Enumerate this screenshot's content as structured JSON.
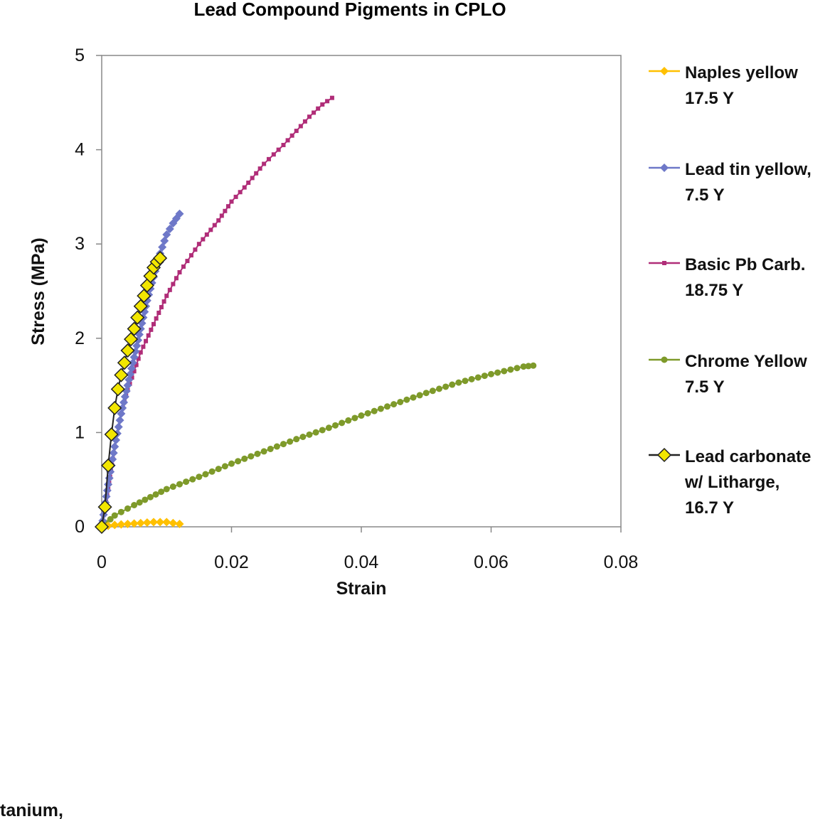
{
  "chart_data": {
    "type": "scatter",
    "title": "Lead Compound Pigments in CPLO",
    "xlabel": "Strain",
    "ylabel": "Stress (MPa)",
    "xlim": [
      0,
      0.08
    ],
    "ylim": [
      0,
      5
    ],
    "x_ticks": [
      "0",
      "0.02",
      "0.04",
      "0.06",
      "0.08"
    ],
    "y_ticks": [
      "0",
      "1",
      "2",
      "3",
      "4",
      "5"
    ],
    "grid": false,
    "legend_position": "right",
    "series": [
      {
        "name": "Naples yellow 17.5 Y",
        "legend_lines": [
          "Naples yellow",
          "17.5 Y"
        ],
        "color": "#FFC000",
        "marker": "diamond",
        "points": [
          [
            0.0,
            0.0
          ],
          [
            0.002,
            0.02
          ],
          [
            0.004,
            0.03
          ],
          [
            0.006,
            0.04
          ],
          [
            0.008,
            0.05
          ],
          [
            0.01,
            0.05
          ],
          [
            0.012,
            0.03
          ]
        ]
      },
      {
        "name": "Lead tin yellow, 7.5 Y",
        "legend_lines": [
          "Lead tin yellow,",
          "7.5 Y"
        ],
        "color": "#6E78C8",
        "marker": "diamond",
        "points": [
          [
            0.0,
            0.0
          ],
          [
            0.001,
            0.45
          ],
          [
            0.002,
            0.85
          ],
          [
            0.003,
            1.2
          ],
          [
            0.004,
            1.5
          ],
          [
            0.005,
            1.8
          ],
          [
            0.006,
            2.1
          ],
          [
            0.007,
            2.4
          ],
          [
            0.008,
            2.65
          ],
          [
            0.009,
            2.9
          ],
          [
            0.01,
            3.1
          ],
          [
            0.011,
            3.22
          ],
          [
            0.012,
            3.32
          ]
        ]
      },
      {
        "name": "Basic Pb Carb. 18.75 Y",
        "legend_lines": [
          "Basic Pb Carb.",
          "18.75 Y"
        ],
        "color": "#B02D78",
        "marker": "square",
        "points": [
          [
            0.0,
            0.0
          ],
          [
            0.001,
            0.4
          ],
          [
            0.002,
            0.85
          ],
          [
            0.003,
            1.2
          ],
          [
            0.004,
            1.45
          ],
          [
            0.005,
            1.65
          ],
          [
            0.006,
            1.85
          ],
          [
            0.008,
            2.15
          ],
          [
            0.01,
            2.45
          ],
          [
            0.012,
            2.7
          ],
          [
            0.015,
            3.0
          ],
          [
            0.018,
            3.25
          ],
          [
            0.02,
            3.45
          ],
          [
            0.022,
            3.6
          ],
          [
            0.025,
            3.85
          ],
          [
            0.028,
            4.05
          ],
          [
            0.03,
            4.2
          ],
          [
            0.032,
            4.35
          ],
          [
            0.034,
            4.48
          ],
          [
            0.0355,
            4.55
          ]
        ]
      },
      {
        "name": "Chrome Yellow 7.5 Y",
        "legend_lines": [
          "Chrome Yellow",
          "7.5 Y"
        ],
        "color": "#7E9A2A",
        "marker": "circle",
        "points": [
          [
            0.0,
            0.0
          ],
          [
            0.002,
            0.12
          ],
          [
            0.005,
            0.23
          ],
          [
            0.01,
            0.4
          ],
          [
            0.015,
            0.53
          ],
          [
            0.02,
            0.67
          ],
          [
            0.025,
            0.8
          ],
          [
            0.03,
            0.93
          ],
          [
            0.035,
            1.05
          ],
          [
            0.04,
            1.18
          ],
          [
            0.045,
            1.3
          ],
          [
            0.05,
            1.42
          ],
          [
            0.055,
            1.53
          ],
          [
            0.06,
            1.62
          ],
          [
            0.065,
            1.7
          ],
          [
            0.0665,
            1.71
          ]
        ]
      },
      {
        "name": "Lead carbonate w/ Litharge, 16.7 Y",
        "legend_lines": [
          "Lead carbonate",
          "w/ Litharge,",
          "16.7 Y"
        ],
        "color": "#F2E600",
        "marker": "diamond-open",
        "points": [
          [
            0.0,
            0.0
          ],
          [
            0.0005,
            0.21
          ],
          [
            0.001,
            0.65
          ],
          [
            0.0015,
            0.98
          ],
          [
            0.002,
            1.26
          ],
          [
            0.0025,
            1.46
          ],
          [
            0.003,
            1.61
          ],
          [
            0.0035,
            1.74
          ],
          [
            0.004,
            1.87
          ],
          [
            0.0045,
            1.99
          ],
          [
            0.005,
            2.1
          ],
          [
            0.0055,
            2.22
          ],
          [
            0.006,
            2.34
          ],
          [
            0.0065,
            2.45
          ],
          [
            0.007,
            2.56
          ],
          [
            0.0075,
            2.66
          ],
          [
            0.008,
            2.75
          ],
          [
            0.0085,
            2.81
          ],
          [
            0.009,
            2.85
          ]
        ]
      }
    ]
  },
  "footer_fragment": "tanium,"
}
